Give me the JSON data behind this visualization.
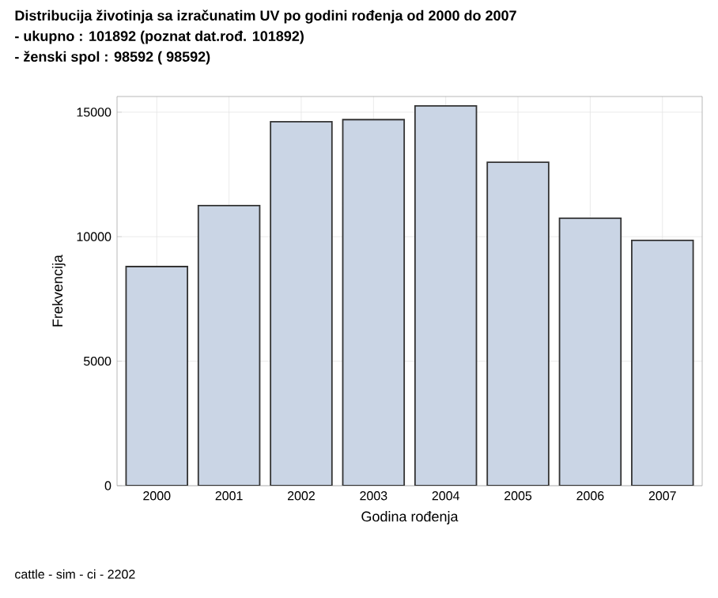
{
  "chart_data": {
    "type": "bar",
    "title": "Distribucija životinja sa izračunatim UV po godini rođenja od 2000 do 2007",
    "subtitle": "- ukupno :   101892 (poznat dat.rođ.   101892)\n- ženski spol :    98592 (   98592)",
    "xlabel": "Godina rođenja",
    "ylabel": "Frekvencija",
    "categories": [
      "2000",
      "2001",
      "2002",
      "2003",
      "2004",
      "2005",
      "2006",
      "2007"
    ],
    "values": [
      8800,
      11250,
      14620,
      14700,
      15250,
      12990,
      10740,
      9850
    ],
    "color": "#cad5e5",
    "ylim": [
      0,
      15630
    ],
    "yticks": [
      0,
      5000,
      10000,
      15000
    ],
    "grid": true,
    "annotations": [
      "cattle - sim - ci - 2202"
    ]
  }
}
